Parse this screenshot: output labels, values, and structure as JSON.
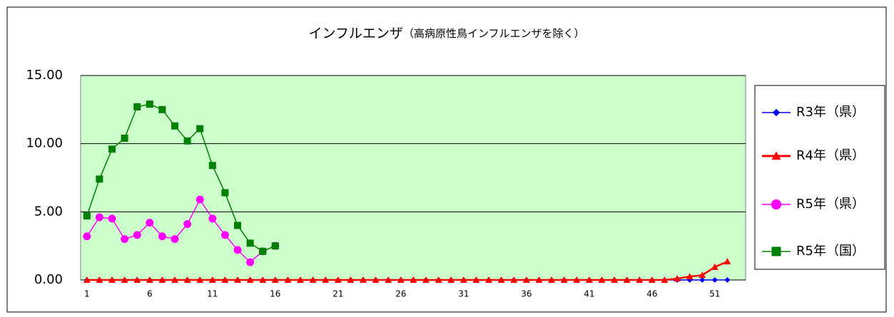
{
  "chart_data": {
    "type": "line",
    "title": "インフルエンザ",
    "subtitle": "（高病原性鳥インフルエンザを除く）",
    "x": [
      1,
      2,
      3,
      4,
      5,
      6,
      7,
      8,
      9,
      10,
      11,
      12,
      13,
      14,
      15,
      16,
      17,
      18,
      19,
      20,
      21,
      22,
      23,
      24,
      25,
      26,
      27,
      28,
      29,
      30,
      31,
      32,
      33,
      34,
      35,
      36,
      37,
      38,
      39,
      40,
      41,
      42,
      43,
      44,
      45,
      46,
      47,
      48,
      49,
      50,
      51,
      52
    ],
    "xlim": [
      0.5,
      53.45
    ],
    "xticks": [
      1,
      6,
      11,
      16,
      21,
      26,
      31,
      36,
      41,
      46,
      51
    ],
    "ylim": [
      0,
      15
    ],
    "yticks": [
      {
        "value": 0,
        "label": "0.00"
      },
      {
        "value": 5,
        "label": "5.00"
      },
      {
        "value": 10,
        "label": "10.00"
      },
      {
        "value": 15,
        "label": "15.00"
      }
    ],
    "grid": true,
    "legend": "right",
    "series": [
      {
        "name": "R3年（県）",
        "color": "#0000ff",
        "marker": "diamond",
        "values": [
          0,
          0,
          0,
          0,
          0,
          0,
          0,
          0,
          0,
          0,
          0,
          0,
          0,
          0,
          0,
          0,
          0,
          0,
          0,
          0,
          0,
          0,
          0,
          0,
          0,
          0,
          0,
          0,
          0,
          0,
          0,
          0,
          0,
          0,
          0,
          0,
          0,
          0,
          0,
          0,
          0,
          0,
          0,
          0,
          0,
          0,
          0,
          0,
          0,
          0,
          0,
          0
        ]
      },
      {
        "name": "R4年（県）",
        "color": "#ff0000",
        "marker": "triangle",
        "values": [
          0,
          0,
          0,
          0,
          0,
          0,
          0,
          0,
          0,
          0,
          0,
          0,
          0,
          0,
          0,
          0,
          0,
          0,
          0,
          0,
          0,
          0,
          0,
          0,
          0,
          0,
          0,
          0,
          0,
          0,
          0,
          0,
          0,
          0,
          0,
          0,
          0,
          0,
          0,
          0,
          0,
          0,
          0,
          0,
          0,
          0,
          0,
          0.1,
          0.25,
          0.35,
          0.95,
          1.35
        ]
      },
      {
        "name": "R5年（県）",
        "color": "#ff00ff",
        "marker": "circle",
        "values": [
          3.2,
          4.6,
          4.5,
          3.0,
          3.3,
          4.2,
          3.2,
          3.0,
          4.1,
          5.9,
          4.5,
          3.3,
          2.2,
          1.3,
          2.1,
          2.5,
          null,
          null,
          null,
          null,
          null,
          null,
          null,
          null,
          null,
          null,
          null,
          null,
          null,
          null,
          null,
          null,
          null,
          null,
          null,
          null,
          null,
          null,
          null,
          null,
          null,
          null,
          null,
          null,
          null,
          null,
          null,
          null,
          null,
          null,
          null,
          null
        ]
      },
      {
        "name": "R5年（国）",
        "color": "#008000",
        "marker": "square",
        "values": [
          4.7,
          7.4,
          9.6,
          10.4,
          12.7,
          12.9,
          12.5,
          11.3,
          10.2,
          11.1,
          8.4,
          6.4,
          4.0,
          2.7,
          2.1,
          2.5,
          null,
          null,
          null,
          null,
          null,
          null,
          null,
          null,
          null,
          null,
          null,
          null,
          null,
          null,
          null,
          null,
          null,
          null,
          null,
          null,
          null,
          null,
          null,
          null,
          null,
          null,
          null,
          null,
          null,
          null,
          null,
          null,
          null,
          null,
          null,
          null
        ]
      }
    ]
  }
}
